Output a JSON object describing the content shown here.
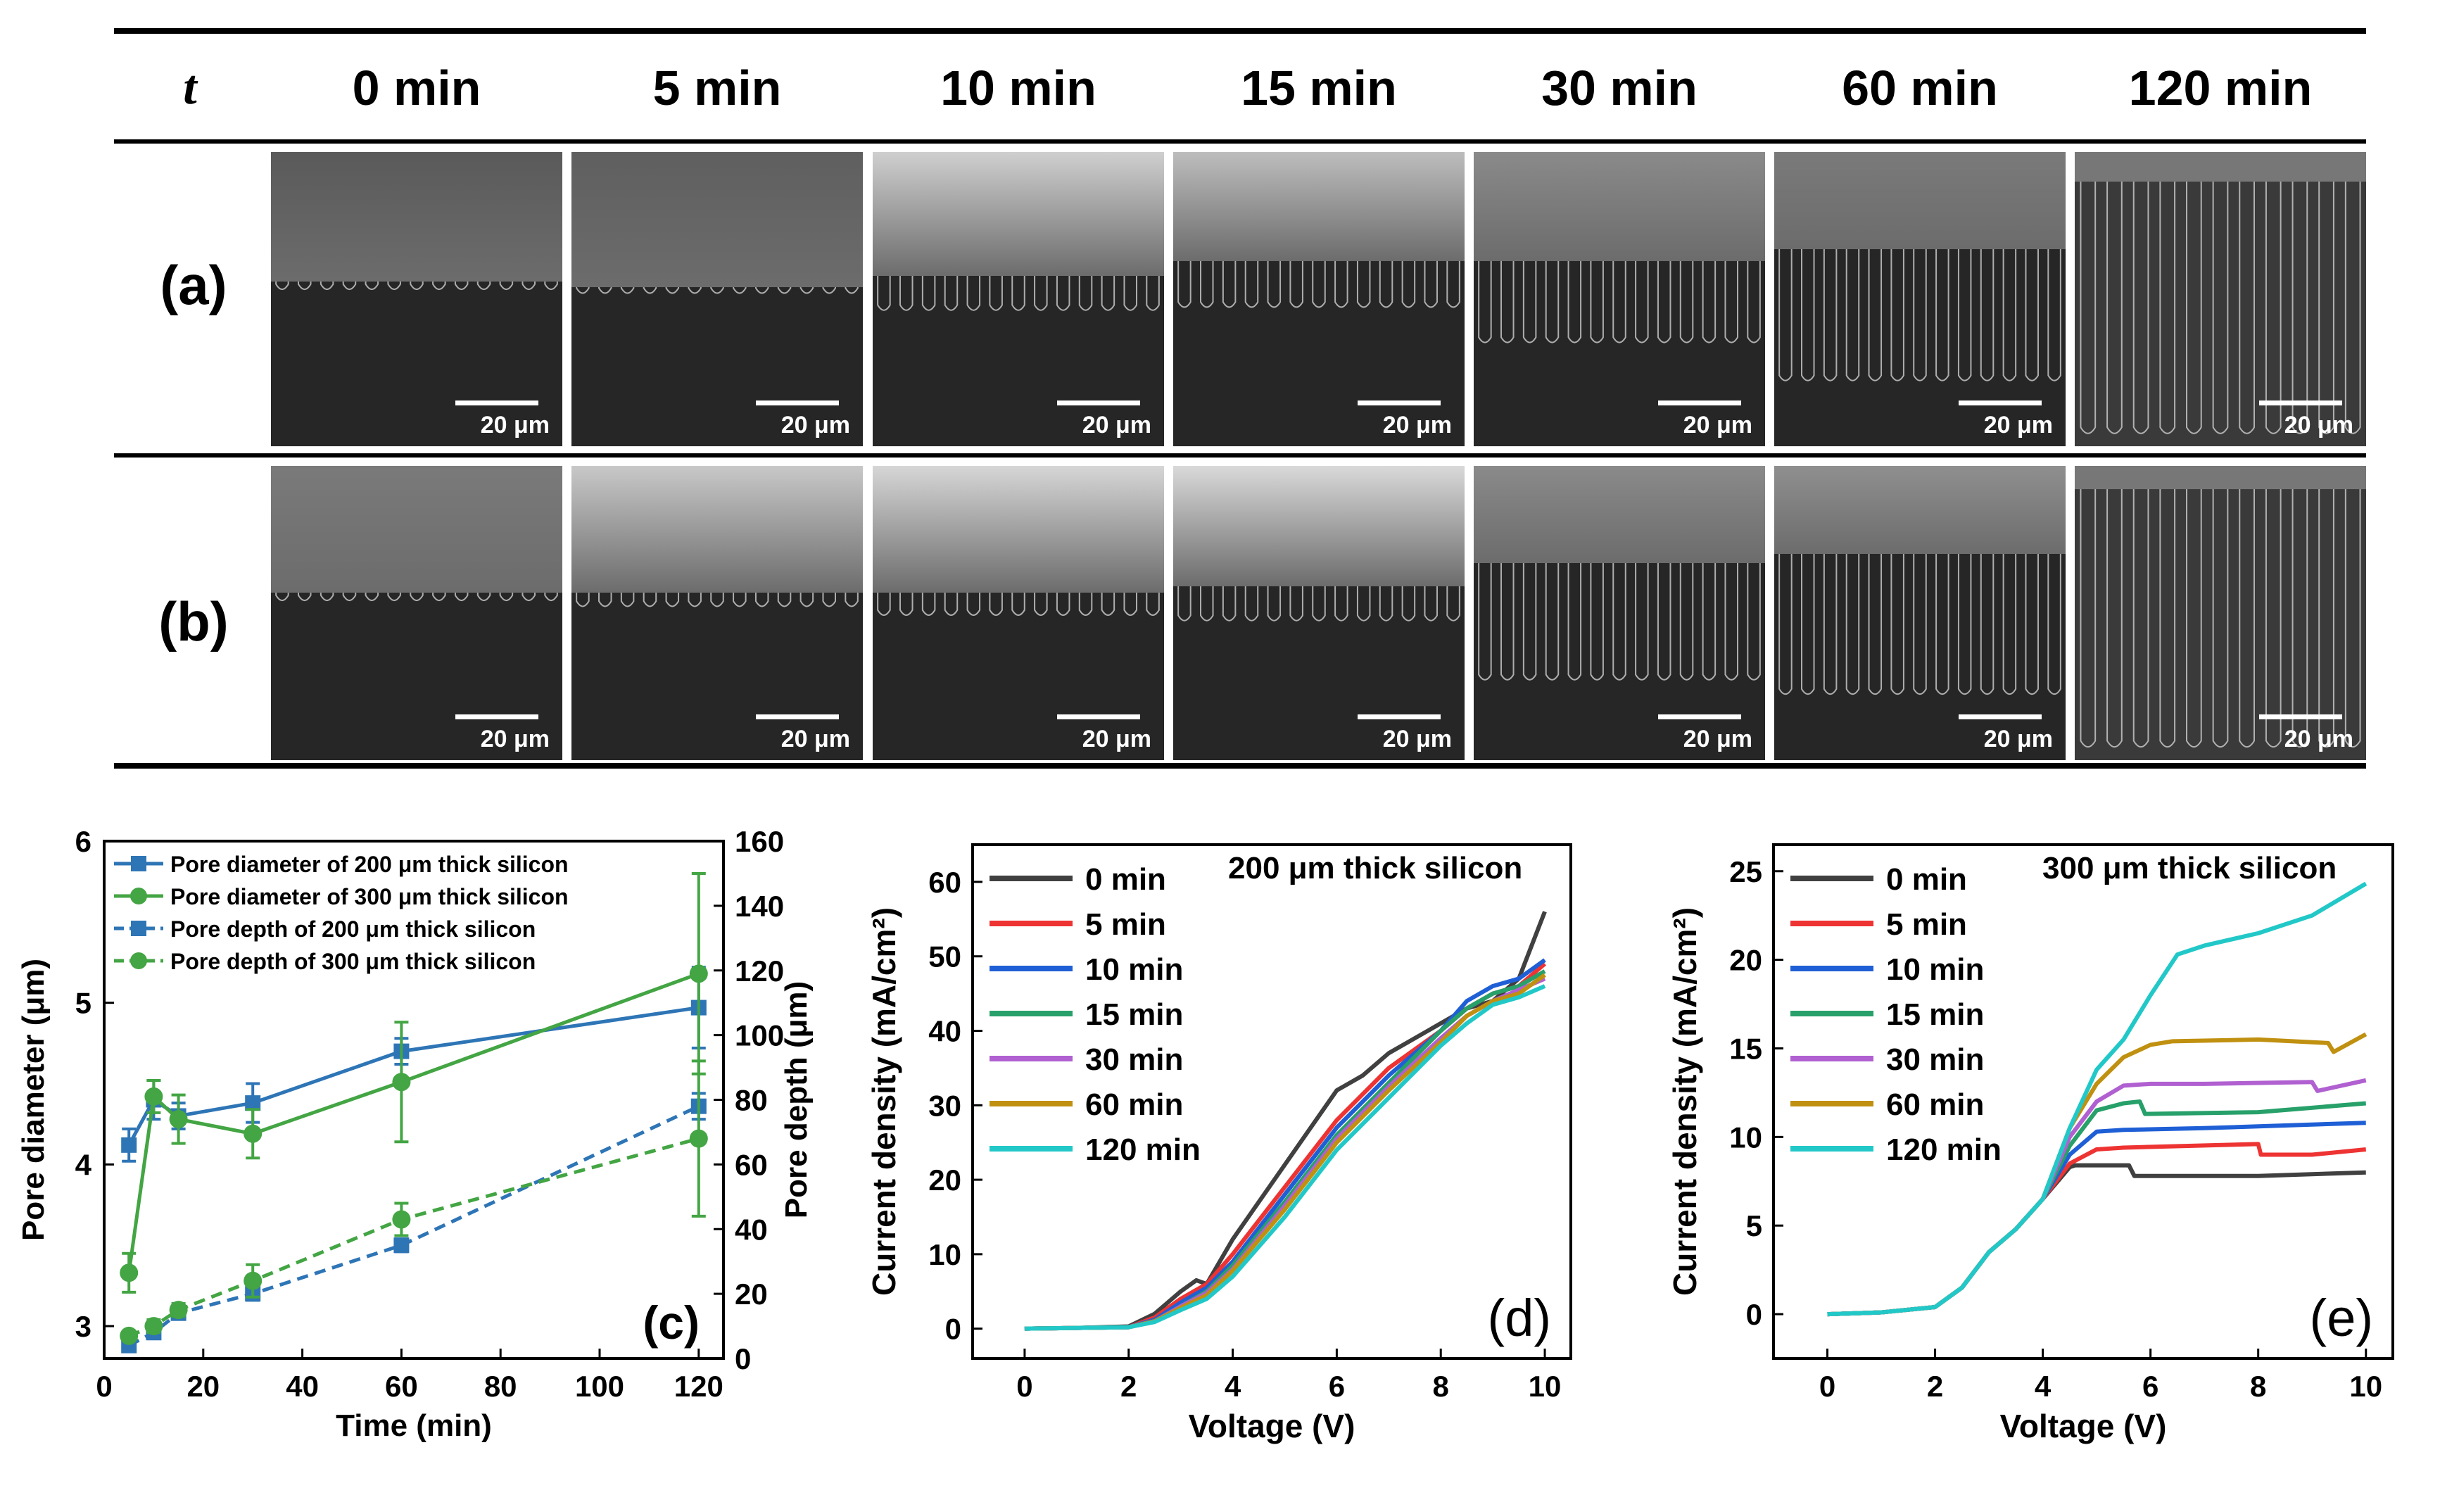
{
  "header": {
    "t_label": "t",
    "times": [
      "0 min",
      "5 min",
      "10 min",
      "15 min",
      "30 min",
      "60 min",
      "120 min"
    ]
  },
  "rows": [
    {
      "label": "(a)",
      "scale_bar": "20 μm"
    },
    {
      "label": "(b)",
      "scale_bar": "20 μm"
    }
  ],
  "panel_label_c": "(c)",
  "panel_label_d": "(d)",
  "panel_label_e": "(e)",
  "colors": {
    "blue": "#2e75b6",
    "green": "#43a543",
    "black": "#404040",
    "red": "#ee3333",
    "blue2": "#1f5fd6",
    "green2": "#27a06a",
    "purple": "#b060d0",
    "gold": "#c09010",
    "cyan": "#22c8c8"
  },
  "chart_data": [
    {
      "type": "line",
      "panel": "(c)",
      "xlabel": "Time (min)",
      "ylabel": "Pore diameter (μm)",
      "y2label": "Pore depth (μm)",
      "xlim": [
        0,
        125
      ],
      "ylim": [
        2.8,
        6
      ],
      "y2lim": [
        0,
        160
      ],
      "xticks": [
        0,
        20,
        40,
        60,
        80,
        100,
        120
      ],
      "yticks": [
        3,
        4,
        5,
        6
      ],
      "y2ticks": [
        0,
        20,
        40,
        60,
        80,
        100,
        120,
        140,
        160
      ],
      "x": [
        5,
        10,
        15,
        30,
        60,
        120
      ],
      "series": [
        {
          "name": "Pore diameter of 200 μm thick silicon",
          "axis": "left",
          "style": "solid",
          "marker": "square",
          "color": "#2e75b6",
          "values": [
            4.12,
            4.4,
            4.3,
            4.38,
            4.7,
            4.97
          ],
          "errors": [
            0.1,
            0.12,
            0.08,
            0.12,
            0.08,
            0.25
          ]
        },
        {
          "name": "Pore diameter of 300 μm thick silicon",
          "axis": "left",
          "style": "solid",
          "marker": "circle",
          "color": "#43a543",
          "values": [
            3.33,
            4.42,
            4.28,
            4.19,
            4.51,
            5.18
          ],
          "errors": [
            0.12,
            0.1,
            0.15,
            0.15,
            0.37,
            0.62
          ]
        },
        {
          "name": "Pore depth of 200 μm thick silicon",
          "axis": "right",
          "style": "dashed",
          "marker": "square",
          "color": "#2e75b6",
          "values": [
            4,
            8,
            14,
            20,
            35,
            78
          ],
          "errors": [
            1,
            1,
            1,
            2,
            2,
            4
          ]
        },
        {
          "name": "Pore depth of 300 μm thick silicon",
          "axis": "right",
          "style": "dashed",
          "marker": "circle",
          "color": "#43a543",
          "values": [
            7,
            10,
            15,
            24,
            43,
            68
          ],
          "errors": [
            1,
            2,
            2,
            5,
            5,
            24
          ]
        }
      ]
    },
    {
      "type": "line",
      "panel": "(d)",
      "title": "200 μm thick silicon",
      "xlabel": "Voltage (V)",
      "ylabel": "Current density (mA/cm²)",
      "xlim": [
        -1,
        10.5
      ],
      "ylim": [
        -4,
        65
      ],
      "xticks": [
        0,
        2,
        4,
        6,
        8,
        10
      ],
      "yticks": [
        0,
        10,
        20,
        30,
        40,
        50,
        60
      ],
      "series": [
        {
          "name": "0 min",
          "color": "#404040",
          "x": [
            0,
            1,
            2,
            2.5,
            3,
            3.3,
            3.5,
            4,
            5,
            6,
            6.5,
            7,
            8,
            8.5,
            9,
            9.5,
            10
          ],
          "y": [
            0,
            0.1,
            0.3,
            2,
            5,
            6.5,
            6,
            12,
            22,
            32,
            34,
            37,
            41,
            43,
            44,
            47,
            56
          ]
        },
        {
          "name": "5 min",
          "color": "#ee3333",
          "x": [
            0,
            1,
            2,
            2.5,
            3,
            3.5,
            4,
            5,
            6,
            7,
            8,
            8.5,
            9,
            9.5,
            10
          ],
          "y": [
            0,
            0.1,
            0.2,
            1.5,
            4,
            6,
            10,
            19,
            28,
            35,
            40,
            43,
            45,
            46,
            49
          ]
        },
        {
          "name": "10 min",
          "color": "#1f5fd6",
          "x": [
            0,
            1,
            2,
            2.5,
            3,
            3.5,
            4,
            5,
            6,
            7,
            8,
            8.5,
            9,
            9.5,
            10
          ],
          "y": [
            0,
            0.1,
            0.2,
            1.2,
            3.5,
            5.5,
            9,
            18,
            27,
            34,
            40,
            44,
            46,
            47,
            49.5
          ]
        },
        {
          "name": "15 min",
          "color": "#27a06a",
          "x": [
            0,
            1,
            2,
            2.5,
            3,
            3.5,
            4,
            5,
            6,
            7,
            8,
            8.5,
            9,
            9.5,
            10
          ],
          "y": [
            0,
            0.1,
            0.2,
            1,
            3,
            5,
            8.5,
            17,
            26,
            33,
            40,
            43,
            45,
            46,
            48
          ]
        },
        {
          "name": "30 min",
          "color": "#b060d0",
          "x": [
            0,
            1,
            2,
            2.5,
            3,
            3.5,
            4,
            5,
            6,
            7,
            8,
            8.5,
            9,
            9.5,
            10
          ],
          "y": [
            0,
            0.1,
            0.2,
            1,
            3,
            4.8,
            8,
            16.5,
            25.5,
            32.5,
            39,
            42,
            44,
            45.5,
            47
          ]
        },
        {
          "name": "60 min",
          "color": "#c09010",
          "x": [
            0,
            1,
            2,
            2.5,
            3,
            3.5,
            4,
            5,
            6,
            7,
            8,
            8.5,
            9,
            9.5,
            10
          ],
          "y": [
            0,
            0.1,
            0.2,
            1,
            2.8,
            4.5,
            7.8,
            16,
            25,
            32,
            38.5,
            42,
            44,
            45,
            47.5
          ]
        },
        {
          "name": "120 min",
          "color": "#22c8c8",
          "x": [
            0,
            1,
            2,
            2.5,
            3,
            3.5,
            4,
            5,
            6,
            7,
            8,
            8.5,
            9,
            9.5,
            10
          ],
          "y": [
            0,
            0.1,
            0.2,
            0.9,
            2.5,
            4,
            7,
            15,
            24,
            31,
            38,
            41,
            43.5,
            44.5,
            46
          ]
        }
      ]
    },
    {
      "type": "line",
      "panel": "(e)",
      "title": "300 μm thick silicon",
      "xlabel": "Voltage (V)",
      "ylabel": "Current density (mA/cm²)",
      "xlim": [
        -1,
        10.5
      ],
      "ylim": [
        -2.5,
        26.5
      ],
      "xticks": [
        0,
        2,
        4,
        6,
        8,
        10
      ],
      "yticks": [
        0,
        5,
        10,
        15,
        20,
        25
      ],
      "series": [
        {
          "name": "0 min",
          "color": "#404040",
          "x": [
            0,
            1,
            2,
            2.5,
            3,
            3.5,
            4,
            4.5,
            4.6,
            5,
            5.6,
            5.7,
            6,
            8,
            10
          ],
          "y": [
            0,
            0.1,
            0.4,
            1.5,
            3.5,
            4.8,
            6.5,
            8.3,
            8.4,
            8.4,
            8.4,
            7.8,
            7.8,
            7.8,
            8
          ]
        },
        {
          "name": "5 min",
          "color": "#ee3333",
          "x": [
            0,
            1,
            2,
            2.5,
            3,
            3.5,
            4,
            4.5,
            5,
            5.5,
            8,
            8.05,
            9,
            10
          ],
          "y": [
            0,
            0.1,
            0.4,
            1.5,
            3.5,
            4.8,
            6.5,
            8.5,
            9.3,
            9.4,
            9.6,
            9.0,
            9.0,
            9.3
          ]
        },
        {
          "name": "10 min",
          "color": "#1f5fd6",
          "x": [
            0,
            1,
            2,
            2.5,
            3,
            3.5,
            4,
            4.5,
            5,
            5.5,
            7,
            10
          ],
          "y": [
            0,
            0.1,
            0.4,
            1.5,
            3.5,
            4.8,
            6.5,
            9,
            10.3,
            10.4,
            10.5,
            10.8
          ]
        },
        {
          "name": "15 min",
          "color": "#27a06a",
          "x": [
            0,
            1,
            2,
            2.5,
            3,
            3.5,
            4,
            4.5,
            5,
            5.5,
            5.8,
            5.9,
            8,
            10
          ],
          "y": [
            0,
            0.1,
            0.4,
            1.5,
            3.5,
            4.8,
            6.5,
            9.5,
            11.5,
            11.9,
            12,
            11.3,
            11.4,
            11.9
          ]
        },
        {
          "name": "30 min",
          "color": "#b060d0",
          "x": [
            0,
            1,
            2,
            2.5,
            3,
            3.5,
            4,
            4.5,
            5,
            5.5,
            6,
            7,
            9,
            9.1,
            10
          ],
          "y": [
            0,
            0.1,
            0.4,
            1.5,
            3.5,
            4.8,
            6.5,
            10,
            12,
            12.9,
            13,
            13,
            13.1,
            12.6,
            13.2
          ]
        },
        {
          "name": "60 min",
          "color": "#c09010",
          "x": [
            0,
            1,
            2,
            2.5,
            3,
            3.5,
            4,
            4.5,
            5,
            5.5,
            6,
            6.4,
            8,
            9.3,
            9.4,
            10
          ],
          "y": [
            0,
            0.1,
            0.4,
            1.5,
            3.5,
            4.8,
            6.5,
            10.5,
            13,
            14.5,
            15.2,
            15.4,
            15.5,
            15.3,
            14.8,
            15.8
          ]
        },
        {
          "name": "120 min",
          "color": "#22c8c8",
          "x": [
            0,
            1,
            2,
            2.5,
            3,
            3.5,
            4,
            4.5,
            5,
            5.5,
            6,
            6.5,
            7,
            8,
            9,
            10
          ],
          "y": [
            0,
            0.1,
            0.4,
            1.5,
            3.5,
            4.8,
            6.5,
            10.5,
            13.8,
            15.5,
            18,
            20.3,
            20.8,
            21.5,
            22.5,
            24.3
          ]
        }
      ]
    }
  ]
}
